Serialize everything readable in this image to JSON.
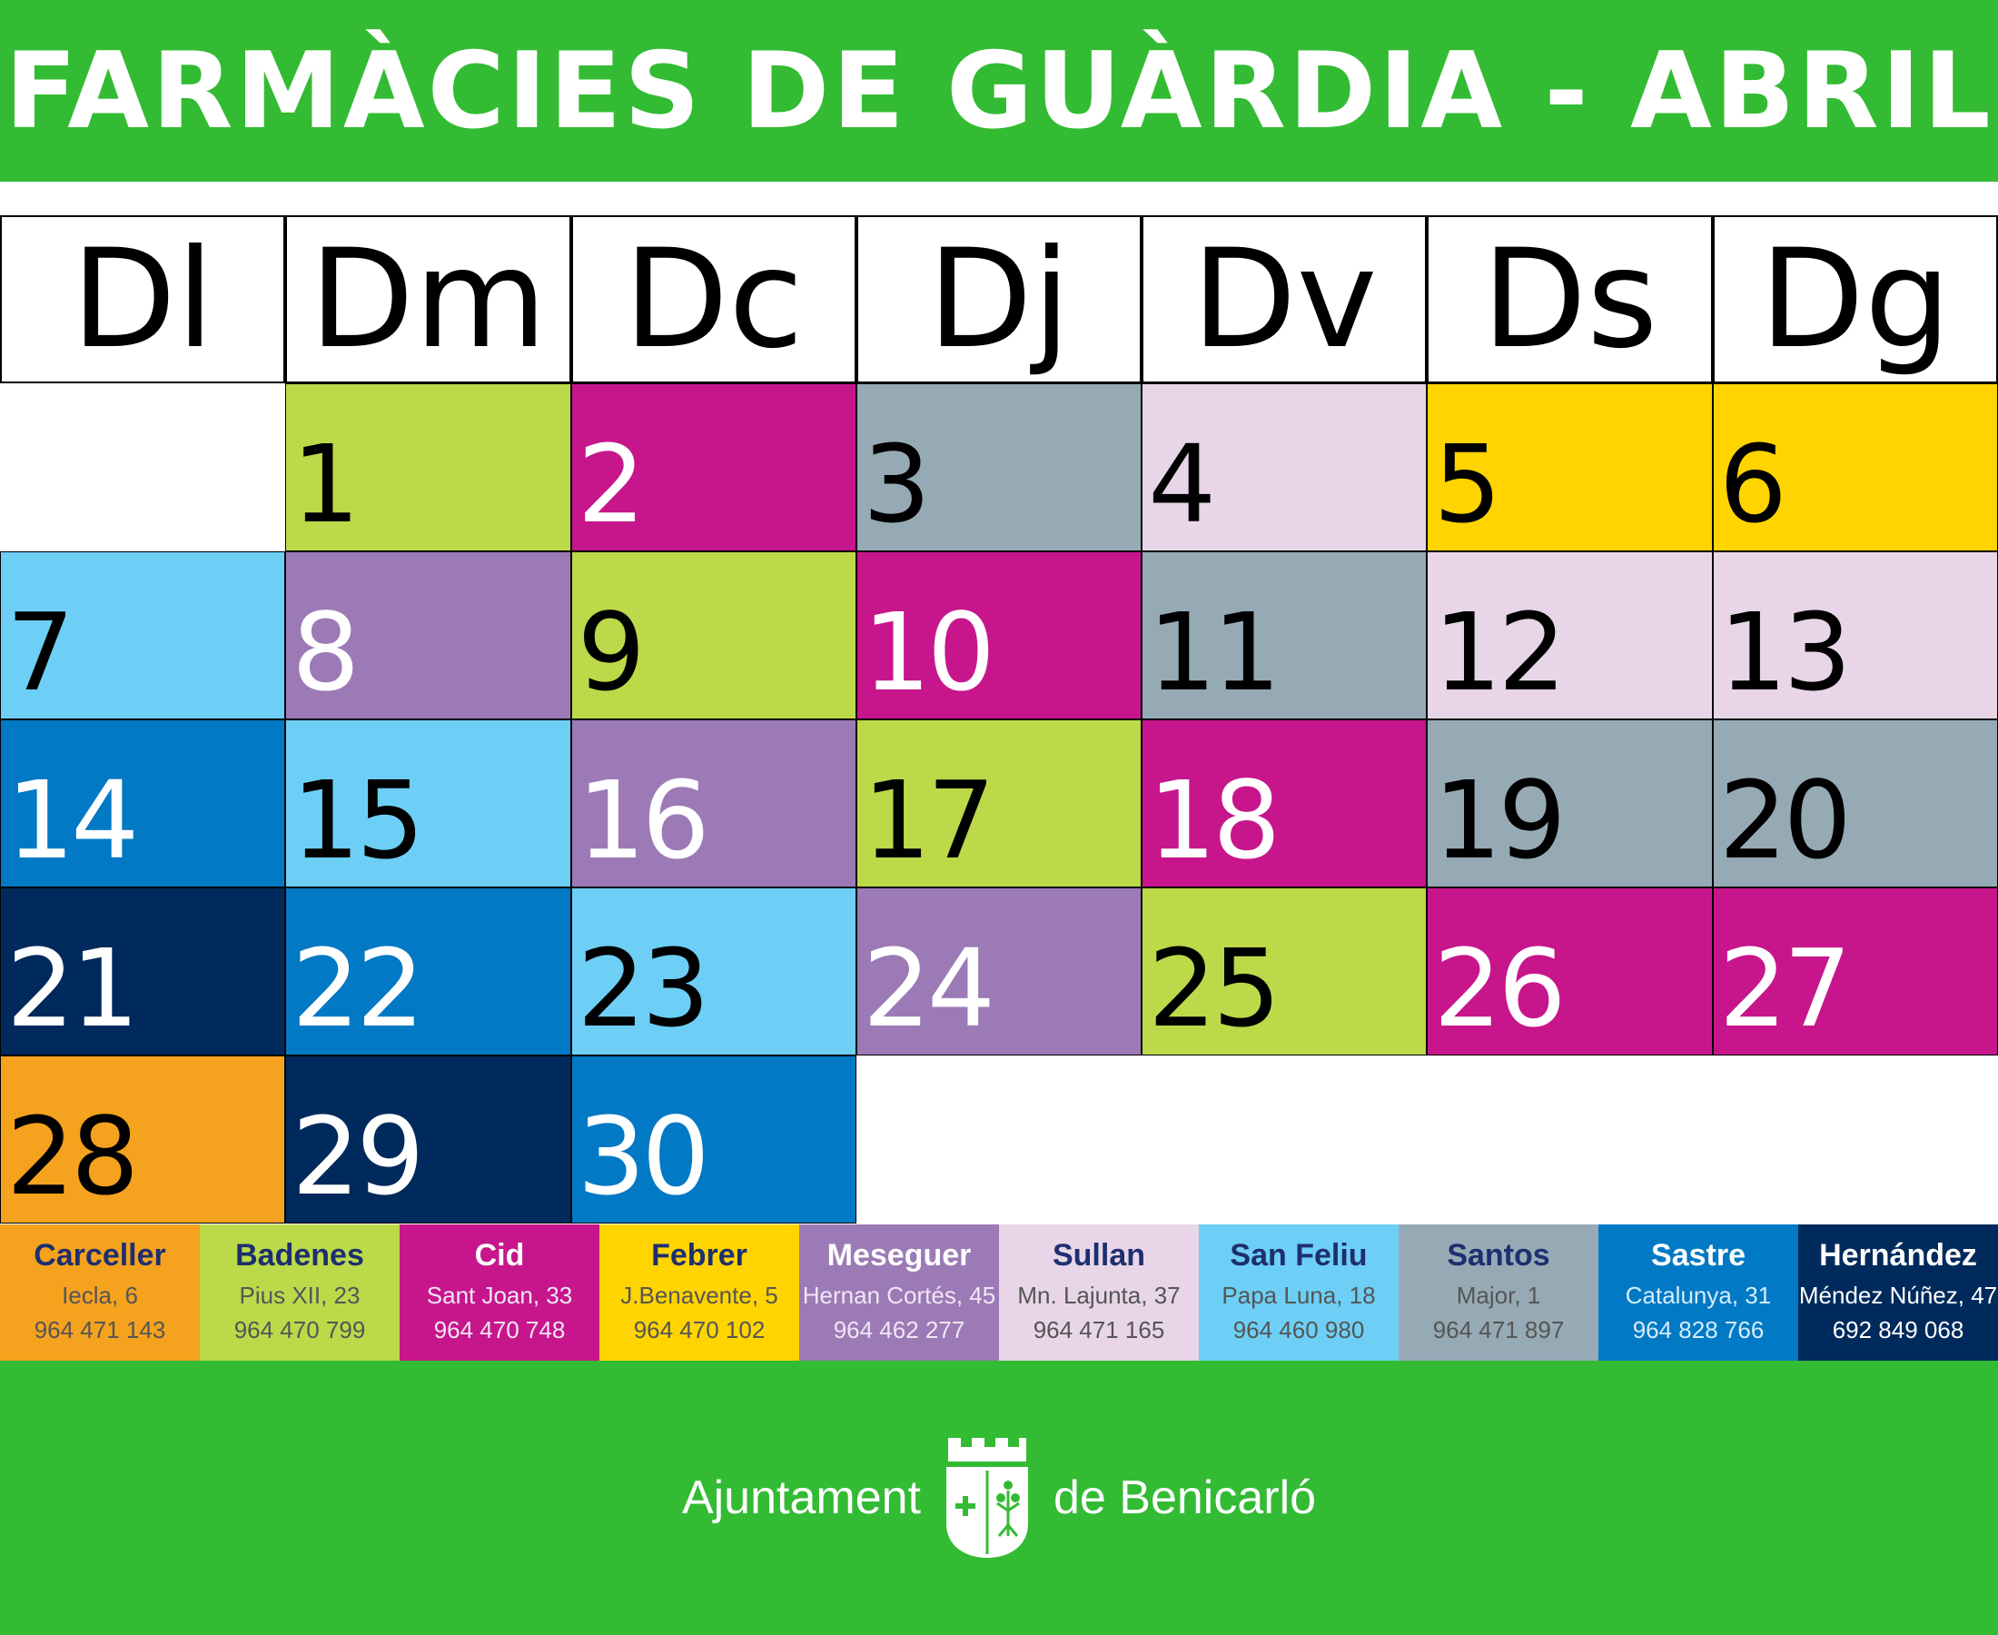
{
  "title": "FARMÀCIES DE GUÀRDIA - ABRIL",
  "weekdays": [
    "Dl",
    "Dm",
    "Dc",
    "Dj",
    "Dv",
    "Ds",
    "Dg"
  ],
  "colors": {
    "Carceller": "#f5a21f",
    "Badenes": "#bcd94a",
    "Cid": "#c7168b",
    "Febrer": "#ffd400",
    "Meseguer": "#9b7ab6",
    "Sullan": "#e8d6e8",
    "San Feliu": "#6dcff5",
    "Santos": "#96aab5",
    "Sastre": "#0279c4",
    "Hernández": "#002a5c"
  },
  "days": [
    {
      "n": "1",
      "pharmacy": "Badenes"
    },
    {
      "n": "2",
      "pharmacy": "Cid"
    },
    {
      "n": "3",
      "pharmacy": "Santos"
    },
    {
      "n": "4",
      "pharmacy": "Sullan"
    },
    {
      "n": "5",
      "pharmacy": "Febrer"
    },
    {
      "n": "6",
      "pharmacy": "Febrer"
    },
    {
      "n": "7",
      "pharmacy": "San Feliu"
    },
    {
      "n": "8",
      "pharmacy": "Meseguer"
    },
    {
      "n": "9",
      "pharmacy": "Badenes"
    },
    {
      "n": "10",
      "pharmacy": "Cid"
    },
    {
      "n": "11",
      "pharmacy": "Santos"
    },
    {
      "n": "12",
      "pharmacy": "Sullan"
    },
    {
      "n": "13",
      "pharmacy": "Sullan"
    },
    {
      "n": "14",
      "pharmacy": "Sastre"
    },
    {
      "n": "15",
      "pharmacy": "San Feliu"
    },
    {
      "n": "16",
      "pharmacy": "Meseguer"
    },
    {
      "n": "17",
      "pharmacy": "Badenes"
    },
    {
      "n": "18",
      "pharmacy": "Cid"
    },
    {
      "n": "19",
      "pharmacy": "Santos"
    },
    {
      "n": "20",
      "pharmacy": "Santos"
    },
    {
      "n": "21",
      "pharmacy": "Hernández"
    },
    {
      "n": "22",
      "pharmacy": "Sastre"
    },
    {
      "n": "23",
      "pharmacy": "San Feliu"
    },
    {
      "n": "24",
      "pharmacy": "Meseguer"
    },
    {
      "n": "25",
      "pharmacy": "Badenes"
    },
    {
      "n": "26",
      "pharmacy": "Cid"
    },
    {
      "n": "27",
      "pharmacy": "Cid"
    },
    {
      "n": "28",
      "pharmacy": "Carceller"
    },
    {
      "n": "29",
      "pharmacy": "Hernández"
    },
    {
      "n": "30",
      "pharmacy": "Sastre"
    }
  ],
  "pharmacies": [
    {
      "name": "Carceller",
      "address": "Iecla, 6",
      "phone": "964 471 143"
    },
    {
      "name": "Badenes",
      "address": "Pius XII, 23",
      "phone": "964 470 799"
    },
    {
      "name": "Cid",
      "address": "Sant Joan, 33",
      "phone": "964 470 748"
    },
    {
      "name": "Febrer",
      "address": "J.Benavente, 5",
      "phone": "964 470 102"
    },
    {
      "name": "Meseguer",
      "address": "Hernan Cortés, 45",
      "phone": "964 462 277"
    },
    {
      "name": "Sullan",
      "address": "Mn. Lajunta, 37",
      "phone": "964 471 165"
    },
    {
      "name": "San Feliu",
      "address": "Papa Luna, 18",
      "phone": "964 460 980"
    },
    {
      "name": "Santos",
      "address": "Major, 1",
      "phone": "964 471 897"
    },
    {
      "name": "Sastre",
      "address": "Catalunya, 31",
      "phone": "964 828 766"
    },
    {
      "name": "Hernández",
      "address": "Méndez Núñez, 47",
      "phone": "692 849 068"
    }
  ],
  "footer": {
    "left_text": "Ajuntament",
    "right_text": "de Benicarló",
    "crest_icon": "benicarlo-crest-icon"
  }
}
